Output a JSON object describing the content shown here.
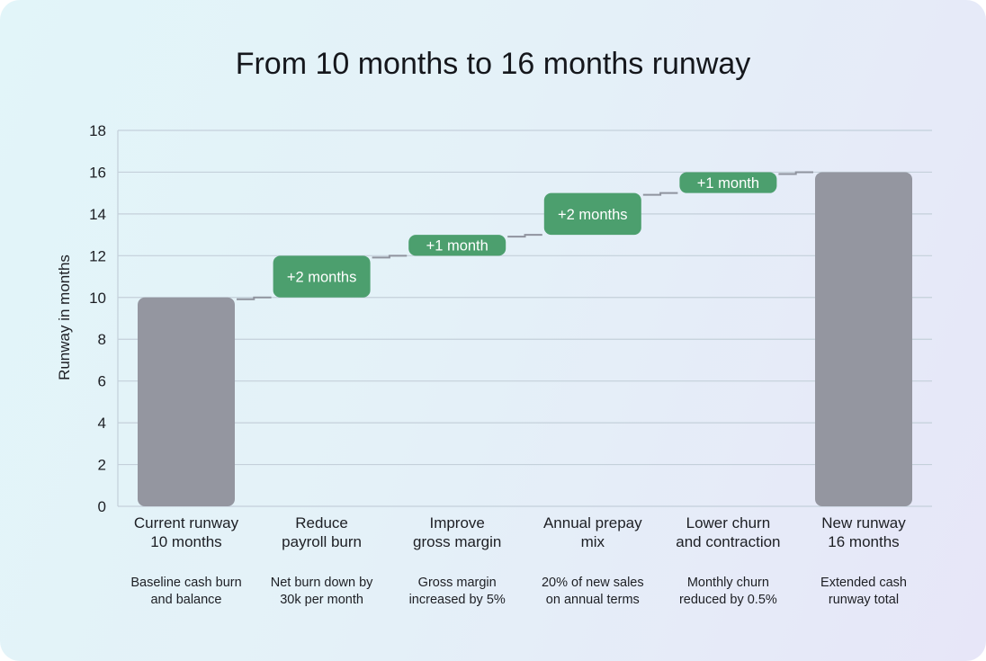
{
  "chart_data": {
    "type": "waterfall",
    "title": "From 10 months to 16 months runway",
    "ylabel": "Runway in months",
    "xlabel": "",
    "ylim": [
      0,
      18
    ],
    "yticks": [
      0,
      2,
      4,
      6,
      8,
      10,
      12,
      14,
      16,
      18
    ],
    "grid": true,
    "categories": [
      [
        "Current runway",
        "10 months"
      ],
      [
        "Reduce",
        "payroll burn"
      ],
      [
        "Improve",
        "gross margin"
      ],
      [
        "Annual prepay",
        "mix"
      ],
      [
        "Lower churn",
        "and contraction"
      ],
      [
        "New runway",
        "16 months"
      ]
    ],
    "descriptions": [
      [
        "Baseline cash burn",
        "and balance"
      ],
      [
        "Net burn down by",
        "30k per month"
      ],
      [
        "Gross margin",
        "increased by 5%"
      ],
      [
        "20% of new sales",
        "on annual terms"
      ],
      [
        "Monthly churn",
        "reduced by 0.5%"
      ],
      [
        "Extended cash",
        "runway total"
      ]
    ],
    "bars": [
      {
        "kind": "total",
        "start": 0,
        "end": 10,
        "label": ""
      },
      {
        "kind": "increase",
        "start": 10,
        "end": 12,
        "label": "+2 months"
      },
      {
        "kind": "increase",
        "start": 12,
        "end": 13,
        "label": "+1 month"
      },
      {
        "kind": "increase",
        "start": 13,
        "end": 15,
        "label": "+2 months"
      },
      {
        "kind": "increase",
        "start": 15,
        "end": 16,
        "label": "+1 month"
      },
      {
        "kind": "total",
        "start": 0,
        "end": 16,
        "label": ""
      }
    ],
    "colors": {
      "total": "#9496a0",
      "increase": "#4c9f6e",
      "grid": "#c4d0da",
      "connector": "#8f939e"
    }
  }
}
